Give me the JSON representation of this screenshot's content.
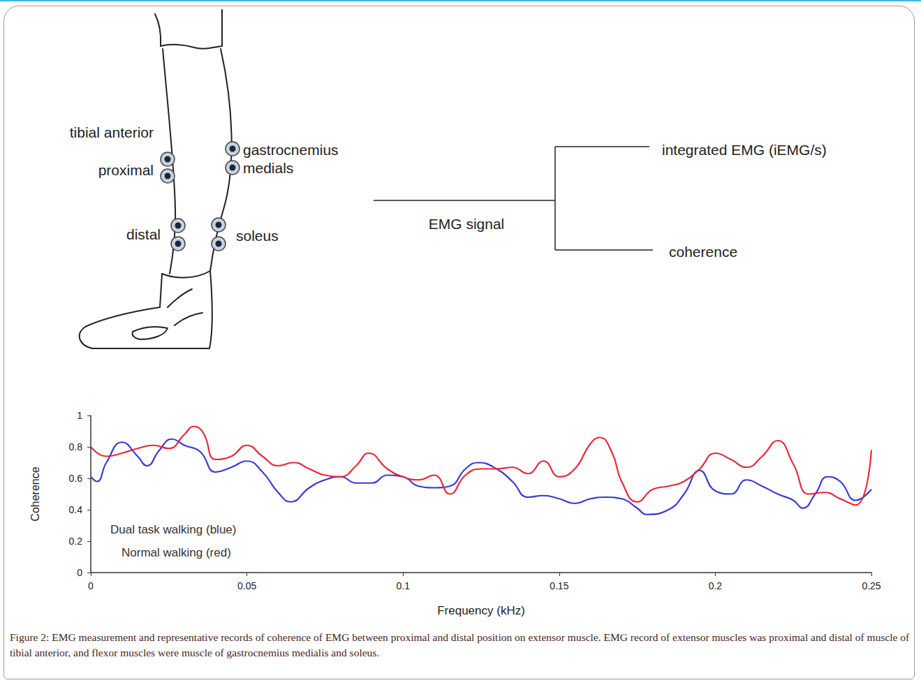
{
  "diagram": {
    "electrode_labels": [
      "tibial anterior",
      "proximal",
      "gastrocnemius",
      "medials",
      "distal",
      "soleus"
    ],
    "flow": {
      "source": "EMG signal",
      "outputs": [
        "integrated EMG (iEMG/s)",
        "coherence"
      ]
    }
  },
  "chart_data": {
    "type": "line",
    "xlabel": "Frequency (kHz)",
    "ylabel": "Coherence",
    "xlim": [
      0,
      0.25
    ],
    "xticks": [
      0,
      0.05,
      0.1,
      0.15,
      0.2,
      0.25
    ],
    "ylim": [
      0,
      1
    ],
    "yticks": [
      0,
      0.2,
      0.4,
      0.6,
      0.8,
      1
    ],
    "grid": false,
    "annotations": [
      "Dual task walking (blue)",
      "Normal walking (red)"
    ],
    "series": [
      {
        "name": "Dual task walking",
        "color": "#3a3ad8",
        "x": [
          0,
          0.002,
          0.005,
          0.01,
          0.015,
          0.018,
          0.022,
          0.026,
          0.03,
          0.035,
          0.04,
          0.045,
          0.05,
          0.055,
          0.06,
          0.064,
          0.07,
          0.075,
          0.08,
          0.085,
          0.09,
          0.095,
          0.1,
          0.105,
          0.11,
          0.115,
          0.12,
          0.124,
          0.13,
          0.135,
          0.14,
          0.145,
          0.15,
          0.155,
          0.16,
          0.165,
          0.17,
          0.175,
          0.178,
          0.185,
          0.19,
          0.195,
          0.2,
          0.205,
          0.21,
          0.215,
          0.22,
          0.225,
          0.228,
          0.232,
          0.236,
          0.24,
          0.245,
          0.25
        ],
        "values": [
          0.61,
          0.58,
          0.7,
          0.83,
          0.74,
          0.68,
          0.78,
          0.85,
          0.81,
          0.77,
          0.64,
          0.67,
          0.71,
          0.64,
          0.51,
          0.45,
          0.54,
          0.59,
          0.61,
          0.57,
          0.57,
          0.62,
          0.61,
          0.55,
          0.54,
          0.55,
          0.66,
          0.7,
          0.66,
          0.58,
          0.48,
          0.49,
          0.47,
          0.44,
          0.47,
          0.48,
          0.47,
          0.41,
          0.37,
          0.4,
          0.5,
          0.65,
          0.52,
          0.5,
          0.59,
          0.55,
          0.5,
          0.46,
          0.41,
          0.5,
          0.61,
          0.58,
          0.46,
          0.53
        ]
      },
      {
        "name": "Normal walking",
        "color": "#e8283a",
        "x": [
          0,
          0.005,
          0.01,
          0.015,
          0.02,
          0.025,
          0.03,
          0.033,
          0.036,
          0.04,
          0.045,
          0.05,
          0.055,
          0.06,
          0.065,
          0.07,
          0.075,
          0.08,
          0.085,
          0.089,
          0.095,
          0.1,
          0.105,
          0.11,
          0.115,
          0.12,
          0.125,
          0.13,
          0.135,
          0.14,
          0.145,
          0.15,
          0.155,
          0.16,
          0.163,
          0.167,
          0.17,
          0.175,
          0.18,
          0.185,
          0.19,
          0.195,
          0.2,
          0.205,
          0.21,
          0.215,
          0.22,
          0.225,
          0.23,
          0.235,
          0.24,
          0.245,
          0.25
        ],
        "values": [
          0.8,
          0.74,
          0.76,
          0.79,
          0.81,
          0.79,
          0.88,
          0.93,
          0.89,
          0.72,
          0.74,
          0.81,
          0.74,
          0.68,
          0.7,
          0.66,
          0.62,
          0.61,
          0.68,
          0.76,
          0.66,
          0.61,
          0.59,
          0.62,
          0.5,
          0.62,
          0.66,
          0.66,
          0.67,
          0.63,
          0.71,
          0.61,
          0.66,
          0.82,
          0.86,
          0.76,
          0.58,
          0.45,
          0.53,
          0.55,
          0.58,
          0.66,
          0.76,
          0.72,
          0.67,
          0.74,
          0.84,
          0.69,
          0.5,
          0.51,
          0.47,
          0.43,
          0.78
        ]
      }
    ]
  },
  "caption": "Figure 2: EMG measurement and representative records of coherence of EMG between proximal and distal position on extensor muscle. EMG record of extensor muscles was proximal and distal of muscle of tibial anterior, and flexor muscles were muscle of gastrocnemius medialis and soleus."
}
